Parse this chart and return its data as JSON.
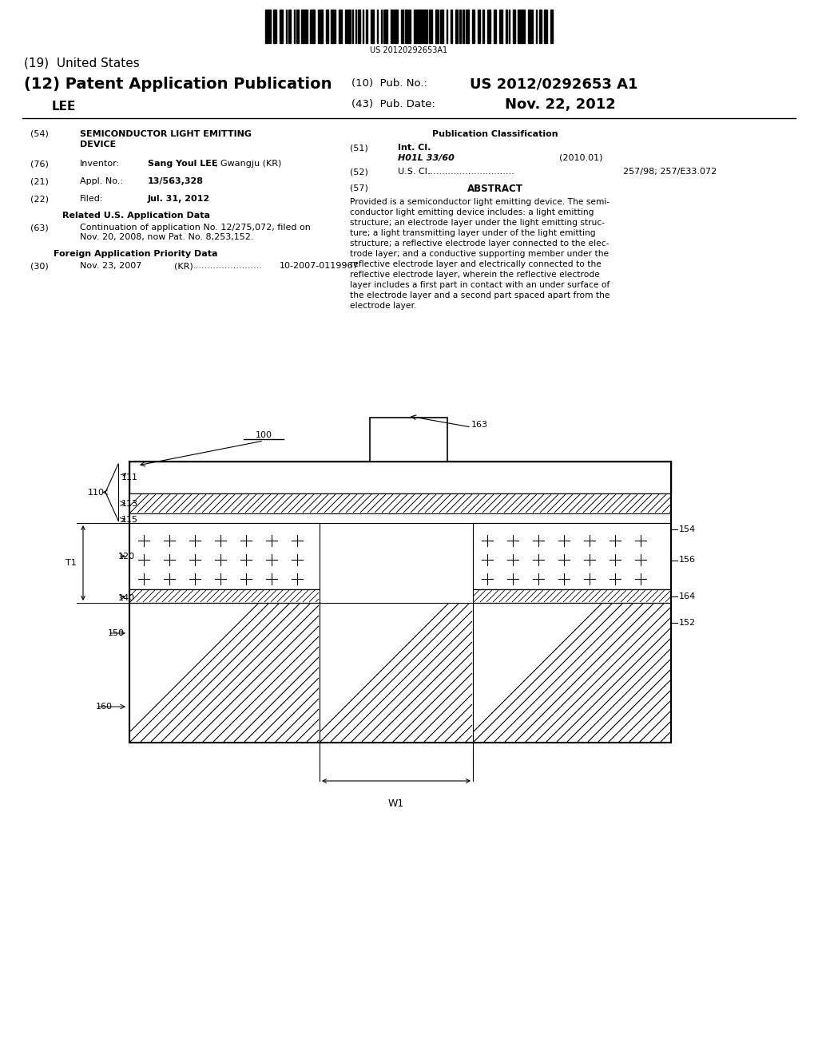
{
  "bg_color": "#ffffff",
  "barcode_text": "US 20120292653A1",
  "patent_number": "US 2012/0292653 A1",
  "pub_date": "Nov. 22, 2012",
  "title19": "(19)  United States",
  "title12": "(12) Patent Application Publication",
  "pub_no_label": "(10)  Pub. No.:",
  "pub_date_label": "(43)  Pub. Date:",
  "inventor_name": "LEE",
  "field54_label": "(54)",
  "field54_text1": "SEMICONDUCTOR LIGHT EMITTING",
  "field54_text2": "DEVICE",
  "field76_label": "(76)",
  "field76_title": "Inventor:",
  "field76_value_bold": "Sang Youl LEE",
  "field76_value_normal": ", Gwangju (KR)",
  "field21_label": "(21)",
  "field21_title": "Appl. No.:",
  "field21_value": "13/563,328",
  "field22_label": "(22)",
  "field22_title": "Filed:",
  "field22_value": "Jul. 31, 2012",
  "related_us_title": "Related U.S. Application Data",
  "field63_label": "(63)",
  "field63_line1": "Continuation of application No. 12/275,072, filed on",
  "field63_line2": "Nov. 20, 2008, now Pat. No. 8,253,152.",
  "foreign_app_title": "Foreign Application Priority Data",
  "field30_label": "(30)",
  "foreign_date": "Nov. 23, 2007",
  "foreign_country": "(KR)",
  "foreign_dots": "........................",
  "foreign_number": "10-2007-0119967",
  "pub_class_title": "Publication Classification",
  "field51_label": "(51)",
  "field51_title": "Int. Cl.",
  "field51_class": "H01L 33/60",
  "field51_year": "(2010.01)",
  "field52_label": "(52)",
  "field52_title": "U.S. Cl.",
  "field52_dots": "..............................",
  "field52_value": "257/98; 257/E33.072",
  "field57_label": "(57)",
  "abstract_title": "ABSTRACT",
  "abstract_lines": [
    "Provided is a semiconductor light emitting device. The semi-",
    "conductor light emitting device includes: a light emitting",
    "structure; an electrode layer under the light emitting struc-",
    "ture; a light transmitting layer under of the light emitting",
    "structure; a reflective electrode layer connected to the elec-",
    "trode layer; and a conductive supporting member under the",
    "reflective electrode layer and electrically connected to the",
    "reflective electrode layer, wherein the reflective electrode",
    "layer includes a first part in contact with an under surface of",
    "the electrode layer and a second part spaced apart from the",
    "electrode layer."
  ]
}
